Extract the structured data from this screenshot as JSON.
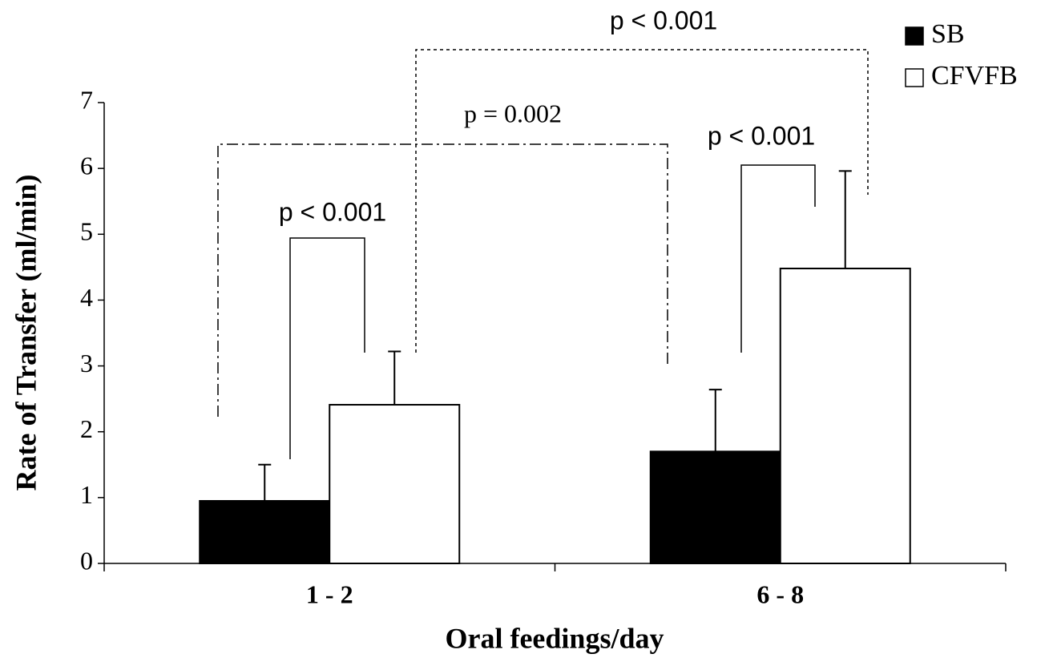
{
  "chart_data": {
    "type": "bar",
    "x_label": "Oral feedings/day",
    "y_label": "Rate of Transfer (ml/min)",
    "categories": [
      "1 - 2",
      "6 - 8"
    ],
    "series": [
      {
        "name": "SB",
        "color": "#000000",
        "values": [
          0.95,
          1.7
        ],
        "errors": [
          0.55,
          0.94
        ]
      },
      {
        "name": "CFVFB",
        "color": "#ffffff",
        "values": [
          2.41,
          4.48
        ],
        "errors": [
          0.81,
          1.48
        ]
      }
    ],
    "ylim": [
      0,
      7
    ],
    "yticks": [
      0,
      1,
      2,
      3,
      4,
      5,
      6,
      7
    ],
    "annotations": [
      {
        "text": "p < 0.001"
      },
      {
        "text": "p = 0.002"
      },
      {
        "text": "p < 0.001"
      },
      {
        "text": "p < 0.001"
      }
    ]
  }
}
